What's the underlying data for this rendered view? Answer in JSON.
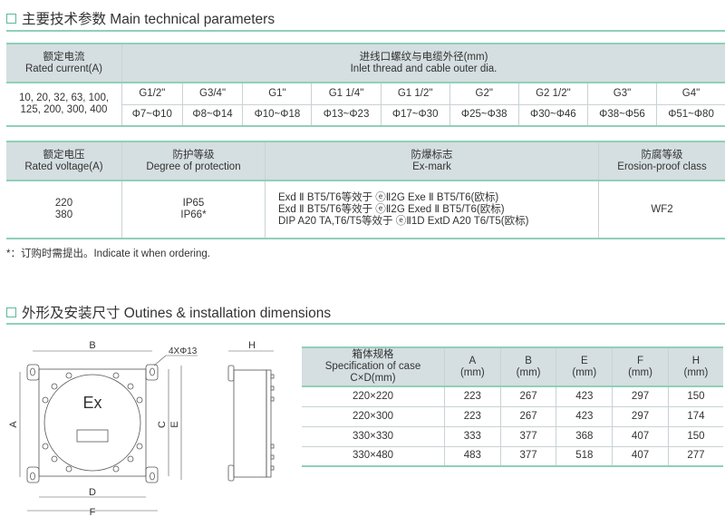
{
  "section1": {
    "title": "主要技术参数 Main technical parameters"
  },
  "table1": {
    "h1_cn": "额定电流",
    "h1_en": "Rated current(A)",
    "h2_cn": "进线口螺纹与电缆外径(mm)",
    "h2_en": "Inlet thread and cable outer dia.",
    "current_l1": "10, 20, 32, 63, 100,",
    "current_l2": "125, 200, 300, 400",
    "threads": [
      "G1/2\"",
      "G3/4\"",
      "G1\"",
      "G1 1/4\"",
      "G1 1/2\"",
      "G2\"",
      "G2 1/2\"",
      "G3\"",
      "G4\""
    ],
    "diameters": [
      "Φ7~Φ10",
      "Φ8~Φ14",
      "Φ10~Φ18",
      "Φ13~Φ23",
      "Φ17~Φ30",
      "Φ25~Φ38",
      "Φ30~Φ46",
      "Φ38~Φ56",
      "Φ51~Φ80"
    ]
  },
  "table2": {
    "headers": [
      {
        "cn": "额定电压",
        "en": "Rated voltage(A)"
      },
      {
        "cn": "防护等级",
        "en": "Degree of protection"
      },
      {
        "cn": "防爆标志",
        "en": "Ex-mark"
      },
      {
        "cn": "防腐等级",
        "en": "Erosion-proof class"
      }
    ],
    "voltage": [
      "220",
      "380"
    ],
    "protection": [
      "IP65",
      "IP66*"
    ],
    "exmark": [
      "Exd Ⅱ BT5/T6等效于 ⓔⅡ2G Exe Ⅱ BT5/T6(欧标)",
      "Exd Ⅱ BT5/T6等效于 ⓔⅡ2G Exed Ⅱ BT5/T6(欧标)",
      "DIP A20 TA,T6/T5等效于 ⓔⅡ1D ExtD A20 T6/T5(欧标)"
    ],
    "erosion": "WF2"
  },
  "note": "*：订购时需提出。Indicate it when ordering.",
  "section2": {
    "title": "外形及安装尺寸 Outines & installation dimensions"
  },
  "drawing": {
    "labels": {
      "A": "A",
      "B": "B",
      "C": "C",
      "D": "D",
      "E": "E",
      "F": "F",
      "H": "H",
      "holes": "4XΦ13",
      "ex": "Ex"
    }
  },
  "table3": {
    "spec_cn": "箱体规格",
    "spec_en": "Specification of case",
    "spec_unit": "C×D(mm)",
    "cols": [
      "A",
      "B",
      "E",
      "F",
      "H"
    ],
    "unit": "(mm)",
    "rows": [
      [
        "220×220",
        "223",
        "267",
        "423",
        "297",
        "150"
      ],
      [
        "220×300",
        "223",
        "267",
        "423",
        "297",
        "174"
      ],
      [
        "330×330",
        "333",
        "377",
        "368",
        "407",
        "150"
      ],
      [
        "330×480",
        "483",
        "377",
        "518",
        "407",
        "277"
      ]
    ]
  }
}
